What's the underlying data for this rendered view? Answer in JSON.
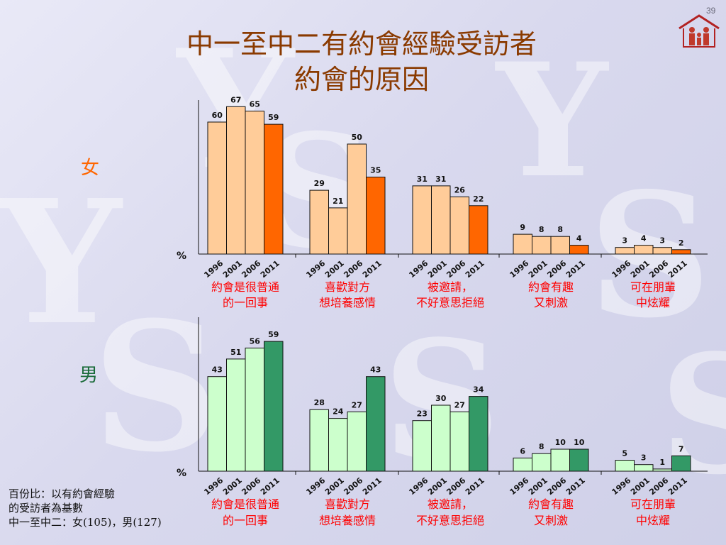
{
  "page_number": "39",
  "title_line1": "中一至中二有約會經驗受訪者",
  "title_line2": "約會的原因",
  "footnote": {
    "line1": "百份比：以有約會經驗",
    "line2": "的受訪者為基數",
    "line3": "中一至中二：女(105)，男(127)"
  },
  "colors": {
    "title": "#8a3a00",
    "female_label": "#ff6600",
    "male_label": "#1a6b3a",
    "female_light": "#ffcc99",
    "female_dark": "#ff6600",
    "male_light": "#ccffcc",
    "male_dark": "#339966",
    "category_label": "#ff0000"
  },
  "chart_data": [
    {
      "type": "bar",
      "panel_label": "女",
      "ylabel": "%",
      "ylim": [
        0,
        70
      ],
      "years": [
        "1996",
        "2001",
        "2006",
        "2011"
      ],
      "categories": [
        {
          "line1": "約會是很普通",
          "line2": "的一回事",
          "values": [
            60,
            67,
            65,
            59
          ]
        },
        {
          "line1": "喜歡對方",
          "line2": "想培養感情",
          "values": [
            29,
            21,
            50,
            35
          ]
        },
        {
          "line1": "被邀請，",
          "line2": "不好意思拒絕",
          "values": [
            31,
            31,
            26,
            22
          ]
        },
        {
          "line1": "約會有趣",
          "line2": "又刺激",
          "values": [
            9,
            8,
            8,
            4
          ]
        },
        {
          "line1": "可在朋輩",
          "line2": "中炫耀",
          "values": [
            3,
            4,
            3,
            2
          ]
        }
      ]
    },
    {
      "type": "bar",
      "panel_label": "男",
      "ylabel": "%",
      "ylim": [
        0,
        70
      ],
      "years": [
        "1996",
        "2001",
        "2006",
        "2011"
      ],
      "categories": [
        {
          "line1": "約會是很普通",
          "line2": "的一回事",
          "values": [
            43,
            51,
            56,
            59
          ]
        },
        {
          "line1": "喜歡對方",
          "line2": "想培養感情",
          "values": [
            28,
            24,
            27,
            43
          ]
        },
        {
          "line1": "被邀請，",
          "line2": "不好意思拒絕",
          "values": [
            23,
            30,
            27,
            34
          ]
        },
        {
          "line1": "約會有趣",
          "line2": "又刺激",
          "values": [
            6,
            8,
            10,
            10
          ]
        },
        {
          "line1": "可在朋輩",
          "line2": "中炫耀",
          "values": [
            5,
            3,
            1,
            7
          ]
        }
      ]
    }
  ]
}
